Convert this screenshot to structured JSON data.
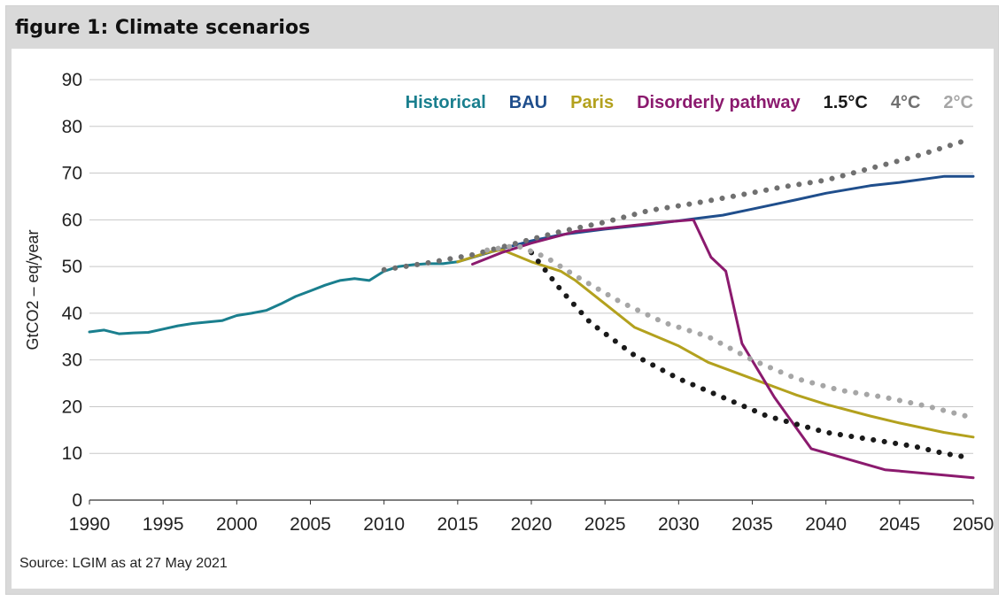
{
  "figure": {
    "title": "figure 1: Climate scenarios",
    "source": "Source: LGIM as at 27 May 2021"
  },
  "chart_data": {
    "type": "line",
    "title": "figure 1: Climate scenarios",
    "xlabel": "",
    "ylabel": "GtCO2 – eq/year",
    "xlim": [
      1990,
      2050
    ],
    "ylim": [
      0,
      90
    ],
    "xticks": [
      "1990",
      "1995",
      "2000",
      "2005",
      "2010",
      "2015",
      "2020",
      "2025",
      "2030",
      "2035",
      "2040",
      "2045",
      "2050"
    ],
    "yticks": [
      "0",
      "10",
      "20",
      "30",
      "40",
      "50",
      "60",
      "70",
      "80",
      "90"
    ],
    "grid": "horizontal",
    "legend_position": "top-right",
    "series": [
      {
        "name": "Historical",
        "color": "#1a7f8e",
        "style": "solid",
        "points": [
          [
            1990,
            36
          ],
          [
            1991,
            36.4
          ],
          [
            1992,
            35.6
          ],
          [
            1993,
            35.8
          ],
          [
            1994,
            35.9
          ],
          [
            1995,
            36.6
          ],
          [
            1996,
            37.3
          ],
          [
            1997,
            37.8
          ],
          [
            1998,
            38.1
          ],
          [
            1999,
            38.4
          ],
          [
            2000,
            39.5
          ],
          [
            2001,
            40
          ],
          [
            2002,
            40.6
          ],
          [
            2003,
            42
          ],
          [
            2004,
            43.6
          ],
          [
            2005,
            44.8
          ],
          [
            2006,
            46
          ],
          [
            2007,
            47
          ],
          [
            2008,
            47.4
          ],
          [
            2009,
            47
          ],
          [
            2010,
            49
          ],
          [
            2011,
            50
          ],
          [
            2012,
            50.4
          ],
          [
            2013,
            50.6
          ],
          [
            2014,
            50.6
          ],
          [
            2015,
            51
          ]
        ]
      },
      {
        "name": "BAU",
        "color": "#1f4e8c",
        "style": "solid",
        "points": [
          [
            2015,
            51
          ],
          [
            2018,
            53.8
          ],
          [
            2020,
            55.5
          ],
          [
            2022,
            56.8
          ],
          [
            2025,
            58
          ],
          [
            2028,
            59
          ],
          [
            2031,
            60.2
          ],
          [
            2033,
            61
          ],
          [
            2035,
            62.3
          ],
          [
            2038,
            64.3
          ],
          [
            2040,
            65.7
          ],
          [
            2043,
            67.3
          ],
          [
            2045,
            68
          ],
          [
            2048,
            69.3
          ],
          [
            2050,
            69.3
          ]
        ]
      },
      {
        "name": "Paris",
        "color": "#b3a11e",
        "style": "solid",
        "points": [
          [
            2015,
            51
          ],
          [
            2017,
            53
          ],
          [
            2018,
            53.6
          ],
          [
            2020,
            51
          ],
          [
            2022,
            49
          ],
          [
            2023,
            47
          ],
          [
            2025,
            42
          ],
          [
            2027,
            37
          ],
          [
            2030,
            33
          ],
          [
            2032,
            29.5
          ],
          [
            2035,
            26
          ],
          [
            2038,
            22.5
          ],
          [
            2040,
            20.5
          ],
          [
            2043,
            18
          ],
          [
            2045,
            16.5
          ],
          [
            2048,
            14.5
          ],
          [
            2050,
            13.5
          ]
        ]
      },
      {
        "name": "Disorderly pathway",
        "color": "#8b1a6e",
        "style": "solid",
        "points": [
          [
            2016,
            50.5
          ],
          [
            2018,
            53
          ],
          [
            2020,
            55
          ],
          [
            2023,
            57.5
          ],
          [
            2026,
            58.5
          ],
          [
            2029,
            59.5
          ],
          [
            2031,
            60
          ],
          [
            2032.2,
            52
          ],
          [
            2033.2,
            49
          ],
          [
            2034.3,
            33.5
          ],
          [
            2036.5,
            22
          ],
          [
            2039,
            11
          ],
          [
            2044,
            6.5
          ],
          [
            2050,
            4.8
          ]
        ]
      },
      {
        "name": "1.5°C",
        "color": "#1a1a1a",
        "style": "dotted",
        "points": [
          [
            2020,
            53
          ],
          [
            2022,
            45
          ],
          [
            2024,
            38
          ],
          [
            2027,
            31
          ],
          [
            2030,
            26
          ],
          [
            2033,
            22
          ],
          [
            2036,
            18
          ],
          [
            2040,
            14.5
          ],
          [
            2043,
            13
          ],
          [
            2046,
            11.5
          ],
          [
            2048,
            10
          ],
          [
            2049.5,
            9.2
          ]
        ]
      },
      {
        "name": "4°C",
        "color": "#707070",
        "style": "dotted",
        "points": [
          [
            2010,
            49.3
          ],
          [
            2013,
            50.8
          ],
          [
            2016,
            52.5
          ],
          [
            2019,
            55
          ],
          [
            2022,
            57.5
          ],
          [
            2025,
            59.5
          ],
          [
            2028,
            62
          ],
          [
            2031,
            63.5
          ],
          [
            2034,
            65.2
          ],
          [
            2037,
            67
          ],
          [
            2040,
            68.5
          ],
          [
            2043,
            71
          ],
          [
            2046,
            73.5
          ],
          [
            2049.5,
            77
          ]
        ]
      },
      {
        "name": "2°C",
        "color": "#a6a6a6",
        "style": "dotted",
        "points": [
          [
            2017,
            53.5
          ],
          [
            2019,
            54.5
          ],
          [
            2021,
            52
          ],
          [
            2023,
            48
          ],
          [
            2026,
            42.5
          ],
          [
            2029,
            38
          ],
          [
            2032,
            35
          ],
          [
            2035,
            30
          ],
          [
            2038,
            26
          ],
          [
            2041,
            23.5
          ],
          [
            2044,
            22
          ],
          [
            2047,
            20
          ],
          [
            2049.5,
            18
          ]
        ]
      }
    ]
  }
}
